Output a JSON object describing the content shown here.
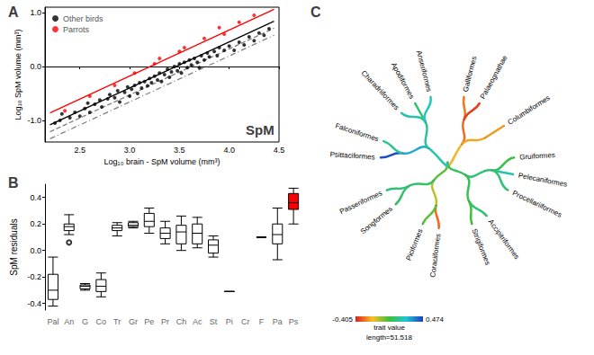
{
  "chart_data": [
    {
      "type": "scatter",
      "title": "A",
      "x_label": "Log₁₀ brain - SpM volume (mm³)",
      "y_label": "Log₁₀ SpM volume (mm³)",
      "xlim": [
        2.15,
        4.5
      ],
      "xticks": [
        2.5,
        {
          "value": 3,
          "label": "3.0"
        },
        3.5,
        {
          "value": 4,
          "label": "4.0"
        },
        4.5
      ],
      "ylim": [
        -1.4,
        1.1
      ],
      "yticks": [
        {
          "value": -1,
          "label": "-1.0"
        },
        {
          "value": 0,
          "label": "0.0"
        },
        {
          "value": 1,
          "label": "1.0"
        }
      ],
      "grid": false,
      "legend": "top-left",
      "series": [
        {
          "name": "Other birds",
          "color": "#000000",
          "marker": "circle",
          "x": [
            2.25,
            2.3,
            2.32,
            2.4,
            2.45,
            2.5,
            2.55,
            2.58,
            2.6,
            2.65,
            2.7,
            2.72,
            2.78,
            2.8,
            2.85,
            2.88,
            2.9,
            2.95,
            2.98,
            3.0,
            3.02,
            3.05,
            3.08,
            3.1,
            3.12,
            3.15,
            3.18,
            3.2,
            3.22,
            3.25,
            3.28,
            3.3,
            3.32,
            3.35,
            3.38,
            3.4,
            3.42,
            3.45,
            3.48,
            3.5,
            3.52,
            3.55,
            3.58,
            3.6,
            3.62,
            3.65,
            3.68,
            3.7,
            3.72,
            3.75,
            3.78,
            3.8,
            3.85,
            3.88,
            3.9,
            3.95,
            4.0,
            4.05,
            4.1,
            4.15,
            4.2,
            4.25,
            4.3,
            4.35,
            4.4
          ],
          "y": [
            -1.05,
            -1.0,
            -0.88,
            -0.95,
            -0.85,
            -0.92,
            -0.78,
            -0.68,
            -0.85,
            -0.7,
            -0.62,
            -0.75,
            -0.6,
            -0.52,
            -0.58,
            -0.45,
            -0.66,
            -0.48,
            -0.38,
            -0.55,
            -0.42,
            -0.35,
            -0.5,
            -0.3,
            -0.4,
            -0.28,
            -0.36,
            -0.22,
            -0.3,
            -0.18,
            -0.25,
            -0.12,
            -0.28,
            -0.15,
            -0.05,
            -0.2,
            -0.1,
            0.0,
            -0.08,
            0.05,
            -0.12,
            0.08,
            -0.02,
            0.12,
            0.03,
            0.15,
            0.08,
            -0.02,
            0.2,
            0.12,
            0.25,
            0.18,
            0.28,
            0.2,
            0.35,
            0.3,
            0.38,
            0.3,
            0.45,
            0.4,
            0.55,
            0.48,
            0.62,
            0.58,
            0.7
          ]
        },
        {
          "name": "Parrots",
          "color": "#ff0000",
          "marker": "circle",
          "x": [
            2.35,
            2.6,
            2.85,
            3.05,
            3.25,
            3.3,
            3.5,
            3.55,
            3.75,
            3.9,
            3.95,
            4.1,
            4.25
          ],
          "y": [
            -0.82,
            -0.55,
            -0.35,
            -0.12,
            0.05,
            0.15,
            0.28,
            0.35,
            0.52,
            0.72,
            0.6,
            0.82,
            0.95
          ]
        }
      ],
      "lines": [
        {
          "color": "#ff0000",
          "line_style": "solid",
          "x": [
            2.2,
            4.45
          ],
          "y": [
            -0.86,
            1.06
          ]
        },
        {
          "color": "#000000",
          "line_style": "solid",
          "x": [
            2.2,
            4.45
          ],
          "y": [
            -1.08,
            0.84
          ]
        },
        {
          "color": "#808080",
          "line_style": "dashed",
          "x": [
            2.2,
            4.45
          ],
          "y": [
            -1.21,
            0.71
          ]
        },
        {
          "color": "#808080",
          "line_style": "dashdot",
          "x": [
            2.2,
            4.45
          ],
          "y": [
            -1.34,
            0.58
          ]
        }
      ],
      "annotations": [
        "SpM"
      ]
    },
    {
      "type": "boxplot",
      "title": "B",
      "y_label": "SpM residuals",
      "categories": [
        "Pal",
        "An",
        "G",
        "Co",
        "Tr",
        "Gr",
        "Pe",
        "Pr",
        "Ch",
        "Ac",
        "St",
        "Pi",
        "Cr",
        "F",
        "Pa",
        "Ps"
      ],
      "values": [
        [
          -0.42,
          -0.37,
          -0.3,
          -0.18,
          -0.05
        ],
        [
          0.12,
          0.15,
          0.18,
          0.2,
          0.27
        ],
        [
          -0.3,
          -0.29,
          -0.27,
          -0.26,
          -0.25
        ],
        [
          -0.35,
          -0.31,
          -0.27,
          -0.22,
          -0.17
        ],
        [
          0.11,
          0.15,
          0.17,
          0.19,
          0.21
        ],
        [
          0.17,
          0.18,
          0.19,
          0.21,
          0.22
        ],
        [
          0.13,
          0.18,
          0.22,
          0.28,
          0.32
        ],
        [
          0.05,
          0.09,
          0.13,
          0.17,
          0.22
        ],
        [
          0.0,
          0.05,
          0.14,
          0.19,
          0.26
        ],
        [
          0.02,
          0.05,
          0.13,
          0.2,
          0.25
        ],
        [
          -0.05,
          -0.02,
          0.04,
          0.08,
          0.11
        ],
        [
          -0.31,
          -0.31,
          -0.31,
          -0.31,
          -0.31
        ],
        null,
        [
          0.1,
          0.1,
          0.1,
          0.1,
          0.1
        ],
        [
          -0.07,
          0.05,
          0.12,
          0.2,
          0.32
        ],
        [
          0.2,
          0.31,
          0.36,
          0.43,
          0.47
        ]
      ],
      "outliers": [
        [],
        [
          0.06
        ],
        [],
        [],
        [],
        [],
        [],
        [],
        [],
        [],
        [],
        [],
        [],
        [],
        [],
        []
      ],
      "colors": [
        "#ffffff",
        "#ffffff",
        "#ffffff",
        "#ffffff",
        "#ffffff",
        "#ffffff",
        "#ffffff",
        "#ffffff",
        "#ffffff",
        "#ffffff",
        "#ffffff",
        "#ffffff",
        "#ffffff",
        "#ffffff",
        "#ffffff",
        "#ff0000"
      ],
      "ylim": [
        -0.45,
        0.5
      ],
      "yticks": [
        -0.4,
        -0.2,
        {
          "value": 0,
          "label": "0.0"
        },
        0.2,
        0.4
      ],
      "grid": false
    },
    {
      "type": "tree",
      "title": "C",
      "tree": {
        "value": 0.0,
        "children": [
          {
            "value": -0.2,
            "children": [
              {
                "value": -0.3,
                "children": [
                  {
                    "name": "Galliformes",
                    "value": -0.28
                  },
                  {
                    "name": "Palaeognathae",
                    "value": -0.36
                  }
                ]
              },
              {
                "value": -0.22,
                "children": [
                  {
                    "name": "Columbiformes",
                    "value": -0.24
                  }
                ]
              }
            ]
          },
          {
            "value": 0.08,
            "children": [
              {
                "value": 0.12,
                "children": [
                  {
                    "name": "Gruiformes",
                    "value": 0.05
                  },
                  {
                    "name": "Pelecaniformes",
                    "value": 0.2
                  },
                  {
                    "name": "Procellariiformes",
                    "value": 0.12
                  }
                ]
              },
              {
                "value": 0.07,
                "children": [
                  {
                    "name": "Accipitriformes",
                    "value": 0.12
                  },
                  {
                    "name": "Strigiformes",
                    "value": 0.03
                  }
                ]
              }
            ]
          },
          {
            "value": 0.0,
            "children": [
              {
                "value": -0.12,
                "children": [
                  {
                    "name": "Coraciiformes",
                    "value": -0.3
                  },
                  {
                    "name": "Piciformes",
                    "value": 0.0
                  }
                ]
              },
              {
                "value": 0.1,
                "children": [
                  {
                    "name": "Songformes",
                    "value": 0.1
                  },
                  {
                    "name": "Passeriformes",
                    "value": 0.12
                  }
                ]
              }
            ]
          },
          {
            "value": 0.2,
            "children": [
              {
                "value": 0.3,
                "children": [
                  {
                    "name": "Psittaciformes",
                    "value": 0.45
                  },
                  {
                    "name": "Falconiformes",
                    "value": 0.17
                  }
                ]
              },
              {
                "value": 0.17,
                "children": [
                  {
                    "name": "Charadriiformes",
                    "value": 0.2
                  },
                  {
                    "name": "Apodiformes",
                    "value": 0.1
                  },
                  {
                    "name": "Anseriformes",
                    "value": 0.22
                  }
                ]
              }
            ]
          }
        ]
      },
      "colorbar": {
        "range": [
          -0.405,
          0.474
        ],
        "ticks": [
          -0.405,
          0.474
        ],
        "label": "trait value"
      },
      "annotations": [
        "length=51.518"
      ]
    }
  ]
}
